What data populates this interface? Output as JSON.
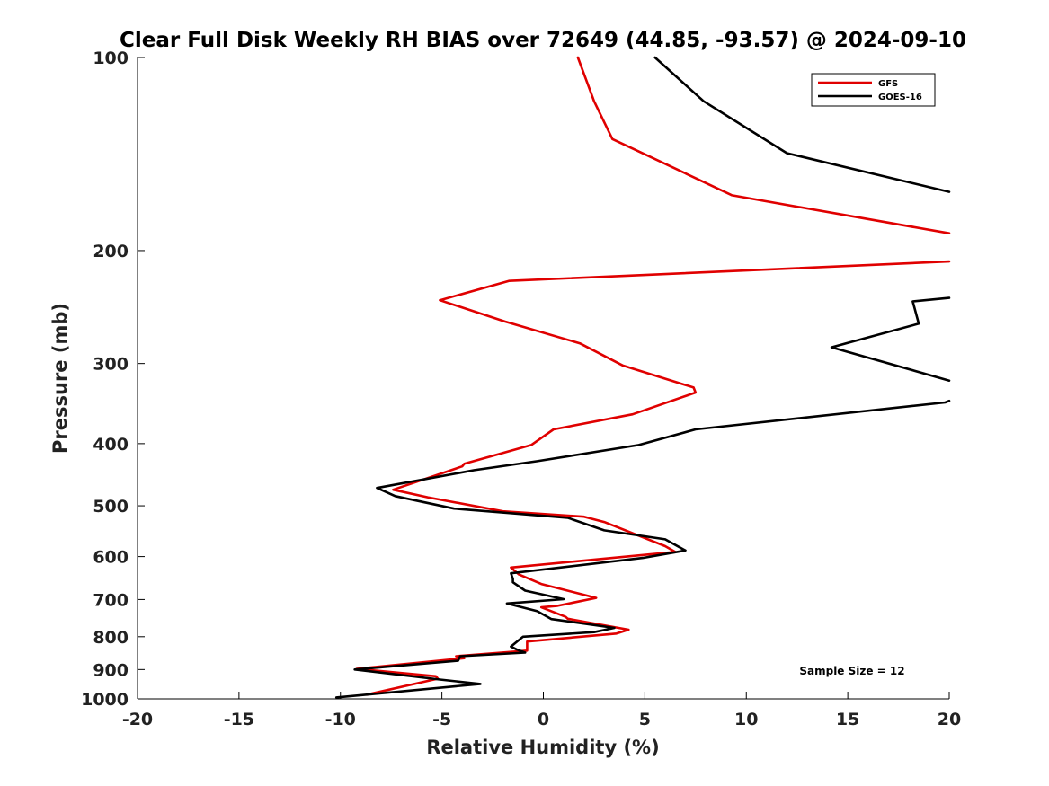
{
  "chart_data": {
    "type": "line",
    "title": "Clear Full Disk Weekly RH BIAS over 72649 (44.85, -93.57) @ 2024-09-10",
    "xlabel": "Relative Humidity (%)",
    "ylabel": "Pressure (mb)",
    "xlim": [
      -20,
      20
    ],
    "ylim": [
      100,
      1000
    ],
    "y_scale": "log",
    "y_inverted": true,
    "x_ticks": [
      -20,
      -15,
      -10,
      -5,
      0,
      5,
      10,
      15,
      20
    ],
    "y_ticks": [
      100,
      200,
      300,
      400,
      500,
      600,
      700,
      800,
      900,
      1000
    ],
    "grid": false,
    "legend_position": "top-right",
    "annotation": "Sample Size = 12",
    "series": [
      {
        "name": "GFS",
        "color": "#e00000",
        "x": [
          1.7,
          2.5,
          3.4,
          9.3,
          20.0,
          null,
          20.0,
          -1.7,
          -5.1,
          -1.9,
          1.8,
          3.9,
          7.4,
          7.5,
          4.4,
          0.5,
          -0.6,
          -3.9,
          -4.0,
          -7.4,
          -5.7,
          -2.0,
          2.0,
          3.0,
          6.0,
          6.5,
          -1.6,
          -1.2,
          -0.1,
          2.6,
          0.7,
          -0.1,
          1.1,
          1.2,
          4.2,
          3.6,
          -0.8,
          -0.8,
          -4.3,
          -3.9,
          -9.2,
          -5.3,
          -5.2,
          -8.7
        ],
        "y": [
          100,
          117,
          134,
          164,
          188,
          null,
          208,
          223,
          239,
          258,
          279,
          302,
          327,
          333,
          360,
          380,
          402,
          430,
          434,
          472,
          485,
          510,
          520,
          530,
          578,
          590,
          624,
          640,
          662,
          696,
          716,
          720,
          745,
          750,
          780,
          791,
          814,
          841,
          858,
          864,
          898,
          922,
          930,
          985
        ]
      },
      {
        "name": "GOES-16",
        "color": "#000000",
        "x": [
          5.5,
          7.9,
          12.0,
          20.0,
          null,
          20.0,
          18.2,
          18.5,
          14.2,
          20.0,
          null,
          20.0,
          19.8,
          7.5,
          4.7,
          -0.3,
          -3.4,
          -8.2,
          -7.3,
          -4.4,
          1.2,
          3.0,
          6.0,
          7.0,
          4.9,
          -1.6,
          -1.5,
          -1.5,
          -0.9,
          1.0,
          -1.8,
          -0.3,
          0.4,
          3.5,
          2.5,
          -1.0,
          -1.6,
          -1.3,
          -0.9,
          -4.1,
          -4.2,
          -9.3,
          -5.1,
          -3.1,
          -10.2
        ],
        "y": [
          100,
          117,
          141,
          162,
          null,
          237,
          240,
          260,
          283,
          319,
          null,
          343,
          345,
          380,
          402,
          426,
          440,
          469,
          483,
          505,
          522,
          546,
          564,
          587,
          603,
          637,
          650,
          658,
          678,
          699,
          710,
          730,
          751,
          775,
          787,
          800,
          829,
          838,
          847,
          858,
          872,
          900,
          933,
          948,
          995
        ]
      }
    ]
  }
}
